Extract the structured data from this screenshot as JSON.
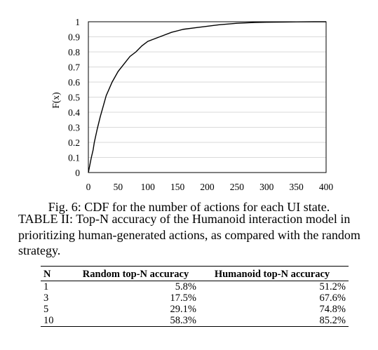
{
  "chart_data": {
    "type": "line",
    "title": "",
    "xlabel": "",
    "ylabel": "F(x)",
    "xlim": [
      0,
      400
    ],
    "ylim": [
      0,
      1
    ],
    "x_ticks": [
      "0",
      "50",
      "100",
      "150",
      "200",
      "250",
      "300",
      "350",
      "400"
    ],
    "y_ticks": [
      "0",
      "0.1",
      "0.2",
      "0.3",
      "0.4",
      "0.5",
      "0.6",
      "0.7",
      "0.8",
      "0.9",
      "1"
    ],
    "grid": "horizontal",
    "series": [
      {
        "color": "#000000",
        "x": [
          0,
          2,
          5,
          8,
          10,
          15,
          20,
          25,
          30,
          40,
          50,
          60,
          70,
          80,
          90,
          100,
          120,
          140,
          160,
          180,
          200,
          220,
          250,
          280,
          300,
          330,
          350,
          380,
          400
        ],
        "y": [
          0.0,
          0.04,
          0.1,
          0.15,
          0.2,
          0.29,
          0.37,
          0.44,
          0.51,
          0.6,
          0.67,
          0.72,
          0.77,
          0.8,
          0.84,
          0.87,
          0.9,
          0.93,
          0.95,
          0.96,
          0.97,
          0.98,
          0.99,
          0.995,
          0.997,
          0.998,
          0.999,
          1.0,
          1.0
        ]
      }
    ]
  },
  "figure_caption": "Fig. 6: CDF for the number of actions for each UI state.",
  "table_caption": "TABLE II: Top-N accuracy of the Humanoid interaction model in prioritizing human-generated actions, as compared with the random strategy.",
  "table": {
    "headers": {
      "n": "N",
      "random": "Random top-N accuracy",
      "humanoid": "Humanoid top-N accuracy"
    },
    "rows": [
      {
        "n": "1",
        "random": "5.8%",
        "humanoid": "51.2%"
      },
      {
        "n": "3",
        "random": "17.5%",
        "humanoid": "67.6%"
      },
      {
        "n": "5",
        "random": "29.1%",
        "humanoid": "74.8%"
      },
      {
        "n": "10",
        "random": "58.3%",
        "humanoid": "85.2%"
      }
    ]
  }
}
